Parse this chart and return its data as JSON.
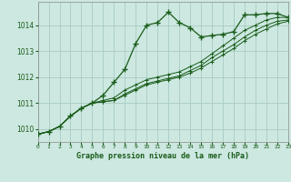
{
  "title": "Graphe pression niveau de la mer (hPa)",
  "bg_color": "#cce8e0",
  "grid_color": "#a8ccc4",
  "line_color": "#1a5c1a",
  "hours": [
    0,
    1,
    2,
    3,
    4,
    5,
    6,
    7,
    8,
    9,
    10,
    11,
    12,
    13,
    14,
    15,
    16,
    17,
    18,
    19,
    20,
    21,
    22,
    23
  ],
  "series": [
    [
      1009.8,
      1009.9,
      1010.1,
      1010.5,
      1010.8,
      1011.0,
      1011.3,
      1011.8,
      1012.3,
      1013.3,
      1014.0,
      1014.1,
      1014.5,
      1014.1,
      1013.9,
      1013.55,
      1013.6,
      1013.65,
      1013.75,
      1014.4,
      1014.4,
      1014.45,
      1014.45,
      1014.3
    ],
    [
      1009.8,
      1009.9,
      1010.1,
      1010.5,
      1010.8,
      1011.0,
      1011.1,
      1011.2,
      1011.5,
      1011.7,
      1011.9,
      1012.0,
      1012.1,
      1012.2,
      1012.4,
      1012.6,
      1012.9,
      1013.2,
      1013.5,
      1013.8,
      1014.0,
      1014.2,
      1014.3,
      1014.3
    ],
    [
      1009.8,
      1009.9,
      1010.1,
      1010.5,
      1010.8,
      1011.0,
      1011.05,
      1011.1,
      1011.35,
      1011.55,
      1011.75,
      1011.85,
      1011.95,
      1012.05,
      1012.25,
      1012.45,
      1012.75,
      1013.0,
      1013.25,
      1013.55,
      1013.8,
      1014.0,
      1014.15,
      1014.2
    ],
    [
      1009.8,
      1009.9,
      1010.1,
      1010.5,
      1010.8,
      1011.0,
      1011.05,
      1011.1,
      1011.3,
      1011.5,
      1011.7,
      1011.8,
      1011.9,
      1012.0,
      1012.15,
      1012.35,
      1012.6,
      1012.85,
      1013.1,
      1013.4,
      1013.65,
      1013.85,
      1014.05,
      1014.15
    ]
  ],
  "ylim_min": 1009.5,
  "ylim_max": 1014.9,
  "yticks": [
    1010,
    1011,
    1012,
    1013,
    1014
  ],
  "xlim_min": 0,
  "xlim_max": 23
}
